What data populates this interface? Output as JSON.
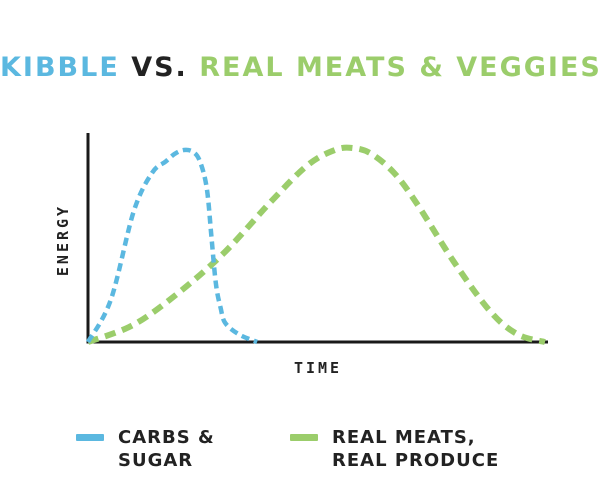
{
  "title": {
    "part1": "KIBBLE",
    "part2": "VS.",
    "part3": "REAL MEATS & VEGGIES"
  },
  "colors": {
    "blue": "#5bb8e0",
    "green": "#9bcd6b",
    "dark": "#222222",
    "axis": "#1a1a1a"
  },
  "chart_data": {
    "type": "line",
    "title": "KIBBLE VS. REAL MEATS & VEGGIES",
    "xlabel": "TIME",
    "ylabel": "ENERGY",
    "grid": false,
    "legend_position": "bottom",
    "xlim": [
      0,
      100
    ],
    "ylim": [
      0,
      100
    ],
    "series": [
      {
        "name": "CARBS & SUGAR",
        "color": "#5bb8e0",
        "style": "dashed",
        "x": [
          0,
          5,
          10,
          14,
          17,
          19,
          21,
          23,
          24.5,
          26,
          27,
          28,
          29,
          30,
          33,
          37
        ],
        "y": [
          0,
          22,
          68,
          88,
          94,
          98,
          100,
          99,
          94,
          80,
          55,
          30,
          18,
          10,
          4,
          0
        ]
      },
      {
        "name": "REAL MEATS, REAL PRODUCE",
        "color": "#9bcd6b",
        "style": "dashed",
        "x": [
          0,
          10,
          20,
          30,
          40,
          48,
          54,
          58,
          62,
          67,
          72,
          80,
          88,
          94,
          100
        ],
        "y": [
          0,
          9,
          26,
          47,
          73,
          92,
          100,
          101,
          98,
          88,
          72,
          42,
          16,
          4,
          0
        ]
      }
    ]
  },
  "legend": {
    "item1": "CARBS &\nSUGAR",
    "item2": "REAL MEATS,\nREAL PRODUCE"
  }
}
